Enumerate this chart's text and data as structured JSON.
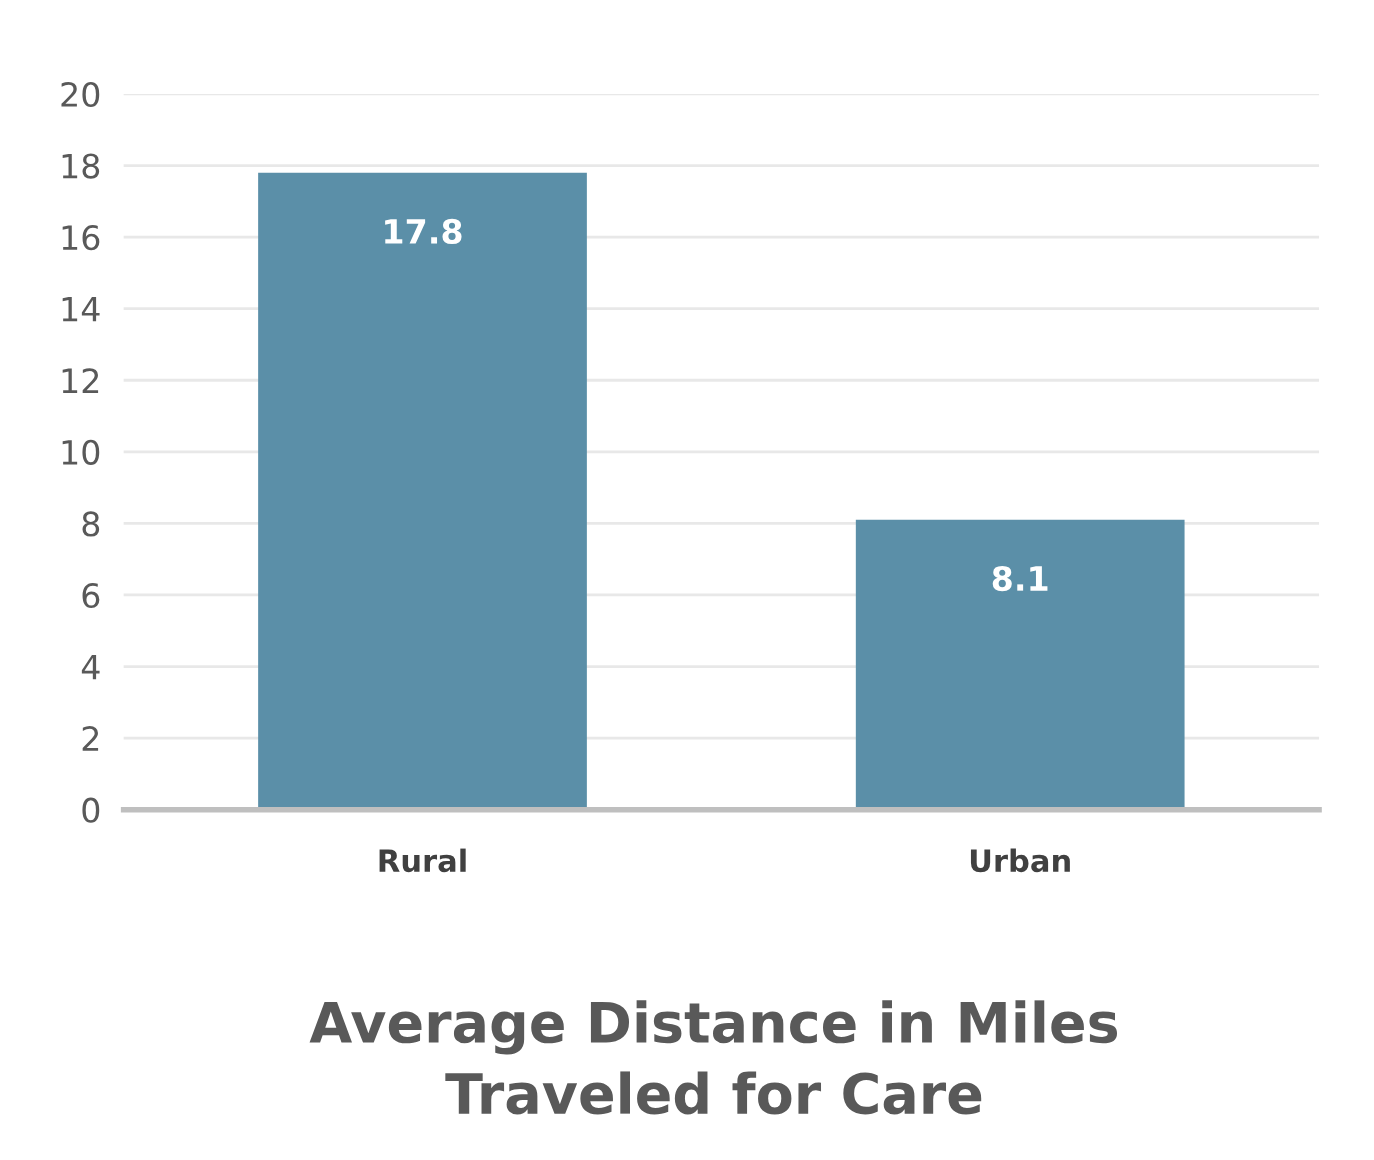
{
  "chart_data": {
    "type": "bar",
    "title": "Average Distance in Miles\nTraveled for Care",
    "categories": [
      "Rural",
      "Urban"
    ],
    "values": [
      17.8,
      8.1
    ],
    "color": "#5b8fa8",
    "ylim": [
      0,
      20
    ],
    "yticks": [
      0,
      2,
      4,
      6,
      8,
      10,
      12,
      14,
      16,
      18,
      20
    ],
    "grid": "y",
    "data_labels": true
  }
}
